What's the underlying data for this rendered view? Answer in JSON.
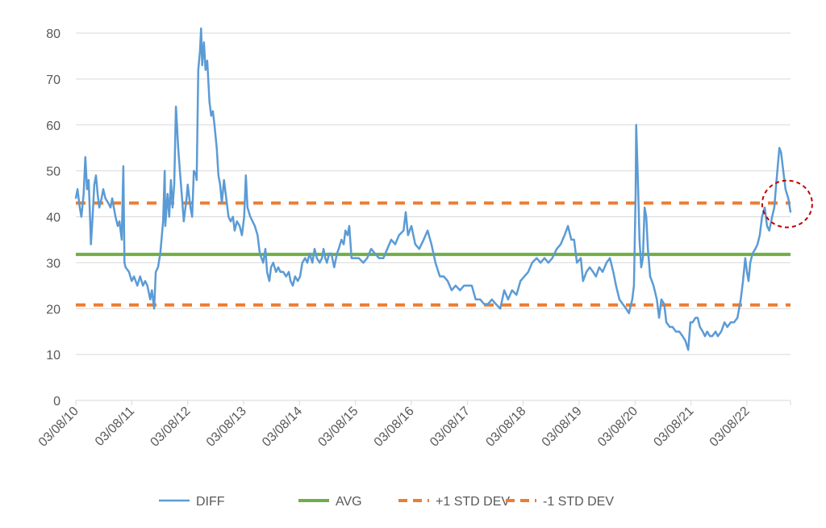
{
  "chart_data": {
    "type": "line",
    "title": "",
    "xlabel": "",
    "ylabel": "",
    "x_unit": "years since 03/08/10",
    "xlim": [
      0,
      12.78
    ],
    "ylim": [
      0,
      80
    ],
    "y_ticks": [
      0,
      10,
      20,
      30,
      40,
      50,
      60,
      70,
      80
    ],
    "x_ticks": [
      0,
      1,
      2,
      3,
      4,
      5,
      6,
      7,
      8,
      9,
      10,
      11,
      12
    ],
    "x_tick_labels": [
      "03/08/10",
      "03/08/11",
      "03/08/12",
      "03/08/13",
      "03/08/14",
      "03/08/15",
      "03/08/16",
      "03/08/17",
      "03/08/18",
      "03/08/19",
      "03/08/20",
      "03/08/21",
      "03/08/22"
    ],
    "grid": true,
    "legend_placement": "bottom",
    "series": [
      {
        "name": "DIFF",
        "style": "solid",
        "color": "#5b9bd5",
        "x": [
          0,
          0.03,
          0.07,
          0.1,
          0.14,
          0.17,
          0.2,
          0.23,
          0.26,
          0.27,
          0.3,
          0.33,
          0.36,
          0.39,
          0.42,
          0.46,
          0.49,
          0.53,
          0.58,
          0.62,
          0.65,
          0.68,
          0.71,
          0.75,
          0.78,
          0.82,
          0.85,
          0.87,
          0.89,
          0.95,
          1.0,
          1.04,
          1.1,
          1.15,
          1.2,
          1.24,
          1.28,
          1.33,
          1.36,
          1.4,
          1.43,
          1.47,
          1.51,
          1.56,
          1.59,
          1.6,
          1.64,
          1.67,
          1.7,
          1.73,
          1.76,
          1.79,
          1.8,
          1.83,
          1.86,
          1.9,
          1.93,
          1.98,
          2.0,
          2.05,
          2.08,
          2.11,
          2.15,
          2.16,
          2.19,
          2.22,
          2.24,
          2.26,
          2.29,
          2.32,
          2.35,
          2.39,
          2.42,
          2.45,
          2.48,
          2.52,
          2.55,
          2.58,
          2.61,
          2.65,
          2.68,
          2.73,
          2.77,
          2.81,
          2.84,
          2.88,
          2.93,
          2.97,
          3.01,
          3.04,
          3.07,
          3.12,
          3.16,
          3.2,
          3.25,
          3.29,
          3.35,
          3.39,
          3.42,
          3.46,
          3.49,
          3.53,
          3.58,
          3.62,
          3.66,
          3.71,
          3.76,
          3.81,
          3.84,
          3.88,
          3.92,
          3.97,
          4.01,
          4.05,
          4.1,
          4.14,
          4.18,
          4.23,
          4.27,
          4.31,
          4.36,
          4.4,
          4.43,
          4.46,
          4.49,
          4.53,
          4.57,
          4.62,
          4.67,
          4.7,
          4.75,
          4.79,
          4.82,
          4.86,
          4.89,
          4.93,
          4.99,
          5.06,
          5.14,
          5.21,
          5.28,
          5.35,
          5.42,
          5.5,
          5.57,
          5.64,
          5.71,
          5.78,
          5.86,
          5.9,
          5.94,
          6.0,
          6.07,
          6.14,
          6.22,
          6.29,
          6.36,
          6.43,
          6.51,
          6.58,
          6.65,
          6.72,
          6.79,
          6.87,
          6.94,
          7.01,
          7.08,
          7.15,
          7.23,
          7.3,
          7.37,
          7.44,
          7.51,
          7.59,
          7.66,
          7.73,
          7.8,
          7.88,
          7.95,
          8.02,
          8.09,
          8.16,
          8.24,
          8.31,
          8.38,
          8.45,
          8.52,
          8.6,
          8.67,
          8.74,
          8.8,
          8.86,
          8.91,
          8.96,
          9.03,
          9.07,
          9.13,
          9.19,
          9.25,
          9.3,
          9.36,
          9.42,
          9.49,
          9.55,
          9.61,
          9.66,
          9.72,
          9.78,
          9.84,
          9.89,
          9.95,
          9.98,
          10.01,
          10.02,
          10.05,
          10.08,
          10.11,
          10.14,
          10.17,
          10.2,
          10.23,
          10.27,
          10.33,
          10.39,
          10.43,
          10.47,
          10.52,
          10.56,
          10.62,
          10.67,
          10.73,
          10.79,
          10.85,
          10.9,
          10.95,
          10.99,
          11.03,
          11.08,
          11.12,
          11.16,
          11.21,
          11.25,
          11.29,
          11.34,
          11.38,
          11.44,
          11.48,
          11.54,
          11.6,
          11.65,
          11.71,
          11.77,
          11.83,
          11.89,
          11.93,
          11.97,
          12.0,
          12.03,
          12.06,
          12.1,
          12.15,
          12.19,
          12.23,
          12.27,
          12.32,
          12.36,
          12.4,
          12.45,
          12.49,
          12.53,
          12.58,
          12.61,
          12.65,
          12.69,
          12.74,
          12.78
        ],
        "y": [
          44,
          46,
          42,
          40,
          45,
          53,
          46,
          48,
          38,
          34,
          40,
          47,
          49,
          45,
          42,
          44,
          46,
          44,
          43,
          42,
          44,
          42,
          40,
          38,
          39,
          35,
          51,
          30,
          29,
          28,
          26,
          27,
          25,
          27,
          25,
          26,
          25,
          22,
          24,
          20,
          28,
          29,
          32,
          39,
          50,
          38,
          45,
          40,
          48,
          42,
          47,
          64,
          62,
          55,
          50,
          44,
          39,
          44,
          47,
          42,
          40,
          50,
          49,
          48,
          72,
          76,
          81,
          73,
          78,
          72,
          74,
          65,
          62,
          63,
          60,
          55,
          49,
          47,
          43,
          48,
          45,
          40,
          39,
          40,
          37,
          39,
          38,
          36,
          40,
          49,
          42,
          40,
          39,
          38,
          36,
          32,
          30,
          33,
          28,
          26,
          29,
          30,
          28,
          29,
          28,
          28,
          27,
          28,
          26,
          25,
          27,
          26,
          27,
          30,
          31,
          30,
          32,
          30,
          33,
          31,
          30,
          31,
          33,
          31,
          30,
          32,
          32,
          29,
          32,
          33,
          35,
          34,
          37,
          36,
          38,
          31,
          31,
          31,
          30,
          31,
          33,
          32,
          31,
          31,
          33,
          35,
          34,
          36,
          37,
          41,
          36,
          38,
          34,
          33,
          35,
          37,
          34,
          30,
          27,
          27,
          26,
          24,
          25,
          24,
          25,
          25,
          25,
          22,
          22,
          21,
          21,
          22,
          21,
          20,
          24,
          22,
          24,
          23,
          26,
          27,
          28,
          30,
          31,
          30,
          31,
          30,
          31,
          33,
          34,
          36,
          38,
          35,
          35,
          30,
          31,
          26,
          28,
          29,
          28,
          27,
          29,
          28,
          30,
          31,
          28,
          25,
          22,
          21,
          20,
          19,
          22,
          25,
          45,
          60,
          48,
          35,
          29,
          31,
          42,
          40,
          33,
          27,
          25,
          22,
          18,
          22,
          21,
          17,
          16,
          16,
          15,
          15,
          14,
          13,
          11,
          17,
          17,
          18,
          18,
          16,
          15,
          14,
          15,
          14,
          14,
          15,
          14,
          15,
          17,
          16,
          17,
          17,
          18,
          22,
          26,
          31,
          28,
          26,
          30,
          32,
          33,
          34,
          36,
          40,
          42,
          38,
          37,
          40,
          42,
          48,
          55,
          54,
          50,
          46,
          44,
          41
        ]
      },
      {
        "name": "AVG",
        "style": "solid",
        "color": "#70ad47",
        "constant": 31.8
      },
      {
        "name": "+1 STD DEV",
        "style": "dashed",
        "color": "#ed7d31",
        "constant": 43
      },
      {
        "name": "-1 STD DEV",
        "style": "dashed",
        "color": "#ed7d31",
        "constant": 20.8
      }
    ],
    "annotations": [
      {
        "type": "dashed-circle",
        "color": "#c00000",
        "x": 12.72,
        "y": 42.8
      }
    ]
  }
}
